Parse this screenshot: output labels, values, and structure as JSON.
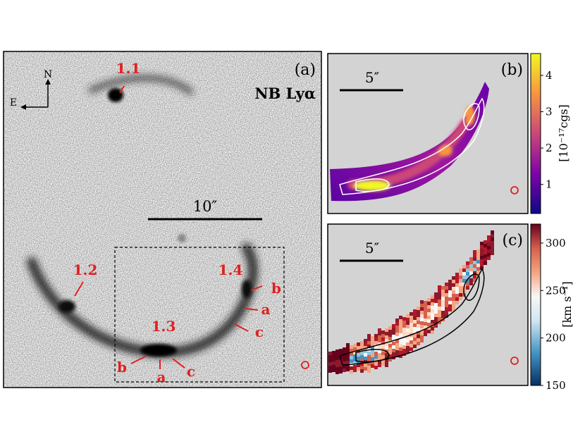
{
  "panel_a": {
    "tag": "(a)",
    "band_label": "NB Lyα",
    "compass": {
      "north": "N",
      "east": "E"
    },
    "scale_bar": "10″",
    "image_labels": {
      "p11": "1.1",
      "p12": "1.2",
      "p13": "1.3",
      "p14": "1.4",
      "l13a": "a",
      "l13b": "b",
      "l13c": "c",
      "l14a": "a",
      "l14b": "b",
      "l14c": "c"
    }
  },
  "panel_b": {
    "tag": "(b)",
    "scale_bar": "5″",
    "colorbar": {
      "label": "[10⁻¹⁷cgs]",
      "ticks": [
        "1",
        "2",
        "3",
        "4"
      ],
      "range": [
        0.2,
        4.6
      ],
      "colormap": "plasma"
    }
  },
  "panel_c": {
    "tag": "(c)",
    "scale_bar": "5″",
    "colorbar": {
      "label": "[km s⁻¹]",
      "ticks": [
        "150",
        "200",
        "250",
        "300"
      ],
      "range": [
        150,
        320
      ],
      "colormap": "RdBu_r"
    }
  },
  "colors": {
    "annotation_red": "#e02020",
    "panel_bg": "#d3d3d3"
  }
}
